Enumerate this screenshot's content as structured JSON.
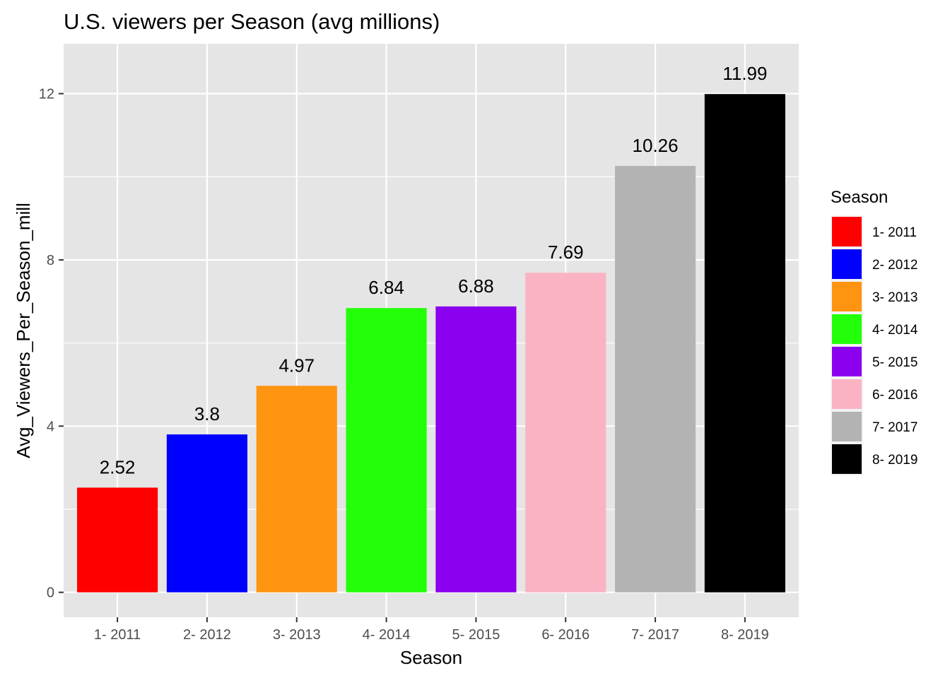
{
  "chart_data": {
    "type": "bar",
    "title": "U.S. viewers per Season (avg millions)",
    "xlabel": "Season",
    "ylabel": "Avg_Viewers_Per_Season_mill",
    "categories": [
      "1- 2011",
      "2- 2012",
      "3- 2013",
      "4- 2014",
      "5- 2015",
      "6- 2016",
      "7- 2017",
      "8- 2019"
    ],
    "values": [
      2.52,
      3.8,
      4.97,
      6.84,
      6.88,
      7.69,
      10.26,
      11.99
    ],
    "data_labels": [
      "2.52",
      "3.8",
      "4.97",
      "6.84",
      "6.88",
      "7.69",
      "10.26",
      "11.99"
    ],
    "colors": [
      "#ff0000",
      "#0000ff",
      "#ff9410",
      "#22ff08",
      "#8b00ee",
      "#fbb3c4",
      "#b3b3b3",
      "#000000"
    ],
    "yticks": [
      0,
      4,
      8,
      12
    ],
    "ylim": [
      -0.6,
      13.2
    ],
    "grid": true,
    "legend": {
      "title": "Season",
      "position": "right",
      "entries": [
        "1- 2011",
        "2- 2012",
        "3- 2013",
        "4- 2014",
        "5- 2015",
        "6- 2016",
        "7- 2017",
        "8- 2019"
      ]
    }
  }
}
